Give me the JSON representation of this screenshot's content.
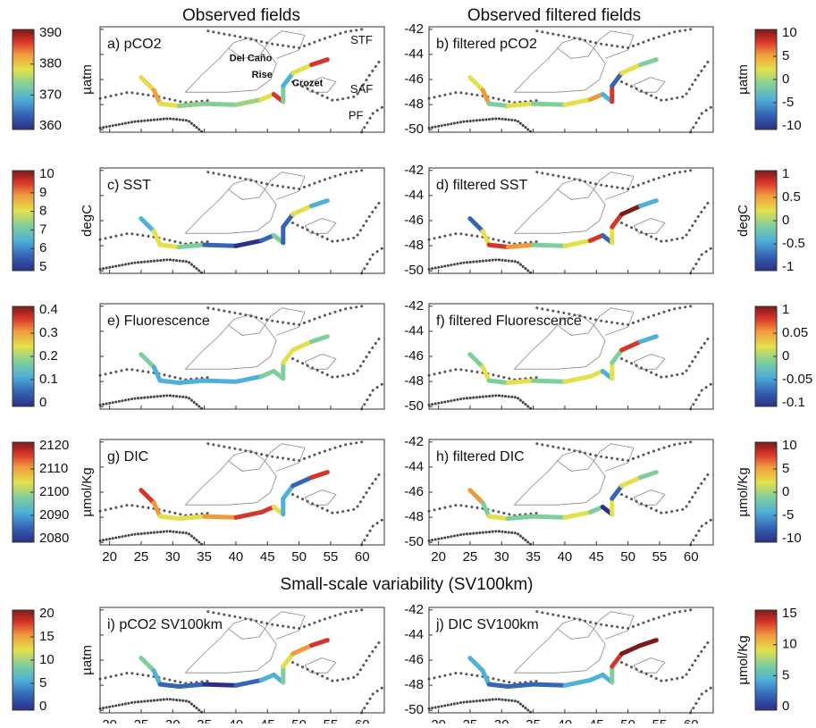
{
  "titles": {
    "observed": "Observed fields",
    "filtered": "Observed filtered fields",
    "small_scale": "Small-scale variability (SV100km)"
  },
  "map": {
    "xlim": [
      18.5,
      63.5
    ],
    "ylim": [
      -50.2,
      -41.8
    ],
    "xticks": [
      20,
      25,
      30,
      35,
      40,
      45,
      50,
      55,
      60
    ],
    "yticks": [
      -42,
      -44,
      -46,
      -48,
      -50
    ],
    "labels": [
      "STF",
      "SAF",
      "PF",
      "Del Caño",
      "Rise",
      "Crozet"
    ]
  },
  "panels": [
    {
      "label": "a) pCO2"
    },
    {
      "label": "b) filtered pCO2"
    },
    {
      "label": "c) SST"
    },
    {
      "label": "d) filtered SST"
    },
    {
      "label": "e) Fluorescence"
    },
    {
      "label": "f) filtered Fluorescence"
    },
    {
      "label": "g) DIC"
    },
    {
      "label": "h) filtered DIC"
    },
    {
      "label": "i) pCO2 SV100km"
    },
    {
      "label": "j) DIC SV100km"
    }
  ],
  "colorbars": [
    {
      "unit": "µatm",
      "ticks": [
        390,
        380,
        370,
        360
      ]
    },
    {
      "unit": "µatm",
      "ticks": [
        10,
        5,
        0,
        -5,
        -10
      ]
    },
    {
      "unit": "degC",
      "ticks": [
        10,
        9,
        8,
        7,
        6,
        5
      ]
    },
    {
      "unit": "degC",
      "ticks": [
        1,
        0.5,
        0,
        -0.5,
        -1
      ]
    },
    {
      "ticks": [
        0.4,
        0.3,
        0.2,
        0.1,
        0
      ]
    },
    {
      "ticks": [
        1,
        0.05,
        0,
        -0.05,
        -0.1
      ]
    },
    {
      "unit": "µmol/Kg",
      "ticks": [
        2120,
        2110,
        2100,
        2090,
        2080
      ]
    },
    {
      "unit": "µmol/Kg",
      "ticks": [
        10,
        5,
        0,
        -5,
        -10
      ]
    },
    {
      "unit": "µatm",
      "ticks": [
        20,
        15,
        10,
        5,
        0
      ]
    },
    {
      "unit": "µmol/Kg",
      "ticks": [
        15,
        10,
        5,
        0
      ]
    }
  ]
}
